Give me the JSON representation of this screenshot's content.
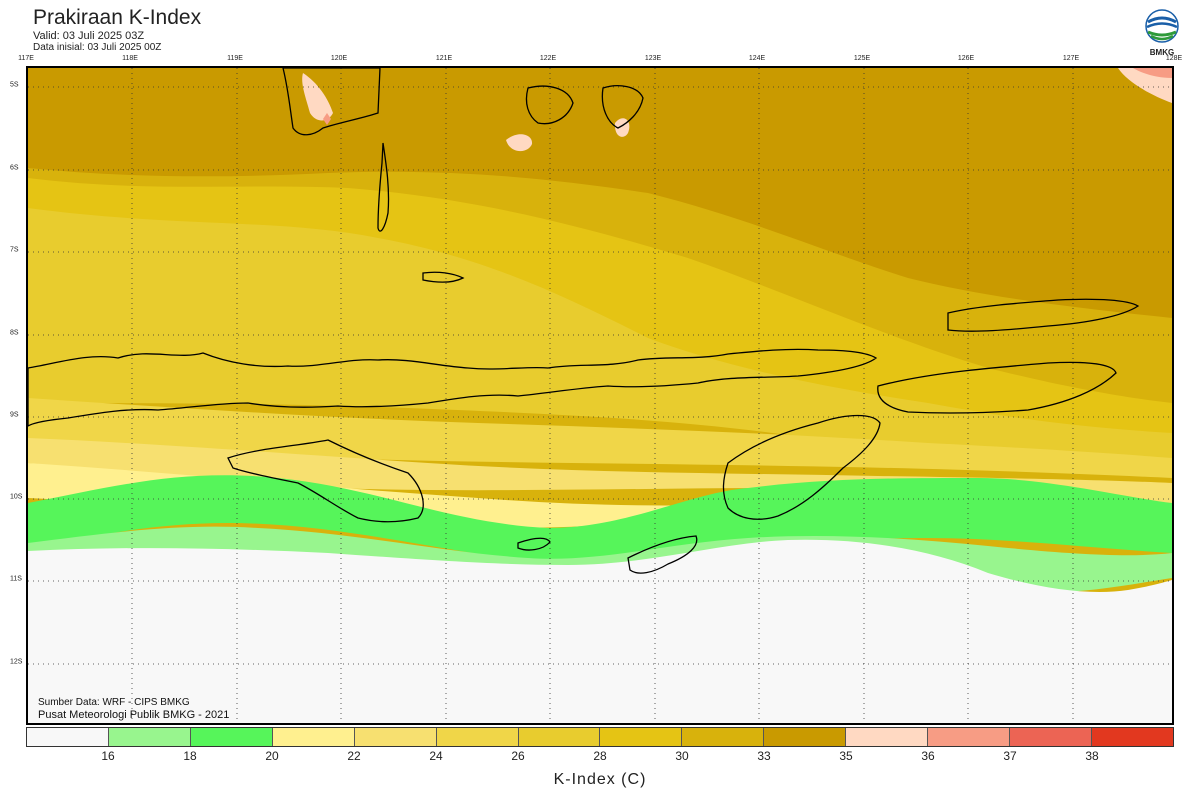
{
  "header": {
    "title": "Prakiraan K-Index",
    "valid": "Valid: 03 Juli 2025 03Z",
    "init": "Data inisial: 03 Juli 2025 00Z"
  },
  "logo": {
    "text": "BMKG"
  },
  "map": {
    "lon_labels": [
      "117E",
      "118E",
      "119E",
      "120E",
      "121E",
      "122E",
      "123E",
      "124E",
      "125E",
      "126E",
      "127E",
      "128E"
    ],
    "lat_labels": [
      "5S",
      "6S",
      "7S",
      "8S",
      "9S",
      "10S",
      "11S",
      "12S"
    ]
  },
  "credits": {
    "source": "Sumber Data: WRF - CIPS BMKG",
    "org": "Pusat Meteorologi Publik BMKG - 2021"
  },
  "colorbar": {
    "colors": [
      "#f8f8f8",
      "#98f58e",
      "#56f55a",
      "#fff08f",
      "#f7e070",
      "#f0d648",
      "#e8cc2e",
      "#e5c414",
      "#d8b20c",
      "#c99a00",
      "#ffd9c2",
      "#f79c84",
      "#ec6454",
      "#e2381f"
    ],
    "ticks": [
      "16",
      "18",
      "20",
      "22",
      "24",
      "26",
      "28",
      "30",
      "33",
      "35",
      "36",
      "37",
      "38"
    ],
    "label": "K-Index (C)"
  }
}
